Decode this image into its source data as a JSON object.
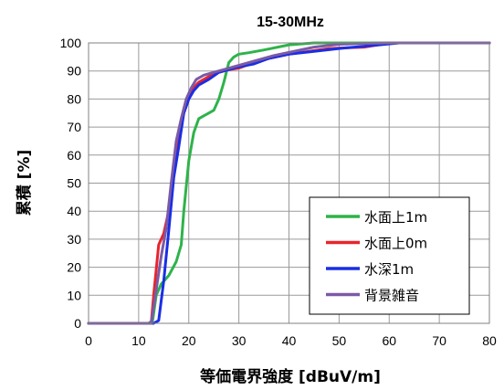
{
  "chart_data": {
    "type": "line",
    "title": "15-30MHz",
    "xlabel": "等価電界強度 [dBuV/m]",
    "ylabel": "累積 [%]",
    "xlim": [
      0,
      80
    ],
    "ylim": [
      0,
      100
    ],
    "xticks": [
      0,
      10,
      20,
      30,
      40,
      50,
      60,
      70,
      80
    ],
    "yticks": [
      0,
      10,
      20,
      30,
      40,
      50,
      60,
      70,
      80,
      90,
      100
    ],
    "grid": true,
    "legend_position": "bottom-right",
    "series": [
      {
        "name": "水面上1m",
        "color": "#2eb34a",
        "x": [
          0,
          12,
          12.8,
          13.5,
          14.5,
          16,
          17.5,
          18.5,
          19,
          20,
          21,
          22,
          23,
          24,
          25,
          26,
          27,
          28,
          29,
          30,
          32,
          35,
          40,
          45,
          50,
          60,
          80
        ],
        "y": [
          0,
          0,
          1,
          10,
          14,
          17,
          22,
          28,
          40,
          58,
          68,
          73,
          74,
          75,
          76,
          80,
          86,
          93,
          95,
          96,
          96.5,
          97.5,
          99.3,
          100,
          100,
          100,
          100
        ]
      },
      {
        "name": "水面上0m",
        "color": "#e8242b",
        "x": [
          0,
          12.5,
          13,
          14,
          15,
          16,
          17,
          18,
          19,
          20,
          21,
          22,
          24,
          26,
          28,
          30,
          33,
          36,
          40,
          44,
          48,
          55,
          60,
          80
        ],
        "y": [
          0,
          0,
          10,
          28,
          32,
          40,
          57,
          68,
          75,
          80,
          84,
          86,
          88,
          89.5,
          90.5,
          91,
          93,
          94.5,
          96,
          97,
          98,
          98.5,
          100,
          100
        ]
      },
      {
        "name": "水深1m",
        "color": "#1a2ee6",
        "x": [
          0,
          13,
          14,
          15,
          16,
          17,
          18,
          19,
          20,
          21,
          22,
          24,
          26,
          28,
          30,
          33,
          36,
          40,
          45,
          50,
          58,
          62,
          80
        ],
        "y": [
          0,
          0,
          1,
          15,
          33,
          52,
          63,
          75,
          80,
          83,
          85,
          87,
          89.5,
          90.5,
          91.5,
          92.5,
          94.5,
          96,
          97,
          98,
          99.3,
          100,
          100
        ]
      },
      {
        "name": "背景雑音",
        "color": "#7b5aa6",
        "x": [
          0,
          12.5,
          13.5,
          14.5,
          15.5,
          16.5,
          17.5,
          18.5,
          19.5,
          20.5,
          21.5,
          23,
          25,
          27,
          30,
          33,
          37,
          41,
          45,
          50,
          55,
          60,
          80
        ],
        "y": [
          0,
          0,
          12,
          24,
          34,
          50,
          65,
          73,
          80,
          84,
          87,
          88.5,
          89.5,
          90.5,
          92,
          93.5,
          95.5,
          97,
          98.5,
          99.5,
          99.8,
          100,
          100
        ]
      }
    ]
  }
}
